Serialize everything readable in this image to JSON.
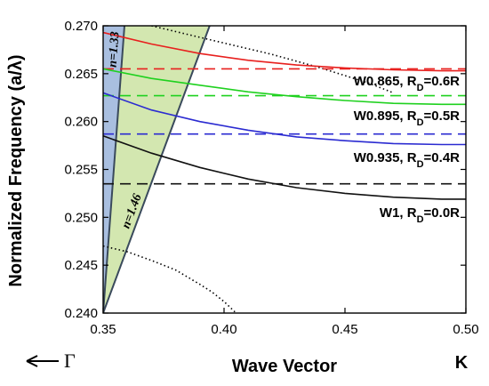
{
  "chart_data": {
    "type": "line",
    "xlabel": "Wave Vector",
    "ylabel": "Normalized Frequency (a/λ)",
    "xlim": [
      0.35,
      0.5
    ],
    "ylim": [
      0.24,
      0.27
    ],
    "x_ticks": [
      "0.35",
      "0.40",
      "0.45",
      "0.50"
    ],
    "y_ticks": [
      "0.240",
      "0.245",
      "0.250",
      "0.255",
      "0.260",
      "0.265",
      "0.270"
    ],
    "x_end_label": "K",
    "gamma_label": "Γ",
    "light_cones": [
      {
        "label": "n=1.33",
        "color": "#a9bfe0",
        "slope": 3.4
      },
      {
        "label": "n=1.46",
        "color": "#d3e7b0",
        "slope": 0.681
      }
    ],
    "series": [
      {
        "label": "W0.865, R",
        "sub": "D",
        "suffix": "=0.6R",
        "color": "#e8201e",
        "cutoff": 0.2655,
        "x": [
          0.35,
          0.37,
          0.39,
          0.41,
          0.43,
          0.45,
          0.47,
          0.49,
          0.5
        ],
        "y": [
          0.2693,
          0.2681,
          0.2671,
          0.2664,
          0.2659,
          0.2656,
          0.2654,
          0.2653,
          0.2653
        ]
      },
      {
        "label": "W0.895, R",
        "sub": "D",
        "suffix": "=0.5R",
        "color": "#1fd11f",
        "cutoff": 0.2627,
        "x": [
          0.35,
          0.37,
          0.39,
          0.41,
          0.43,
          0.45,
          0.47,
          0.49,
          0.5
        ],
        "y": [
          0.2655,
          0.2645,
          0.2638,
          0.2631,
          0.2626,
          0.2622,
          0.2619,
          0.2618,
          0.2618
        ]
      },
      {
        "label": "W0.935, R",
        "sub": "D",
        "suffix": "=0.4R",
        "color": "#2b2bd1",
        "cutoff": 0.2587,
        "x": [
          0.35,
          0.37,
          0.39,
          0.41,
          0.43,
          0.45,
          0.47,
          0.49,
          0.5
        ],
        "y": [
          0.263,
          0.2612,
          0.26,
          0.2591,
          0.2584,
          0.258,
          0.2577,
          0.2576,
          0.2576
        ]
      },
      {
        "label": "W1, R",
        "sub": "D",
        "suffix": "=0.0R",
        "color": "#111111",
        "cutoff": 0.2535,
        "x": [
          0.35,
          0.37,
          0.39,
          0.41,
          0.43,
          0.45,
          0.47,
          0.49,
          0.5
        ],
        "y": [
          0.2585,
          0.2567,
          0.2552,
          0.254,
          0.2531,
          0.2525,
          0.2521,
          0.2519,
          0.2519
        ]
      }
    ],
    "band_edges": [
      {
        "x": [
          0.37,
          0.38,
          0.4,
          0.42,
          0.44,
          0.46,
          0.47
        ],
        "y": [
          0.27,
          0.2694,
          0.2682,
          0.267,
          0.2656,
          0.264,
          0.263
        ]
      },
      {
        "x": [
          0.35,
          0.36,
          0.37,
          0.38,
          0.39,
          0.395,
          0.4,
          0.405
        ],
        "y": [
          0.247,
          0.2464,
          0.2455,
          0.2445,
          0.243,
          0.2422,
          0.2412,
          0.24
        ]
      }
    ],
    "grid": false
  }
}
